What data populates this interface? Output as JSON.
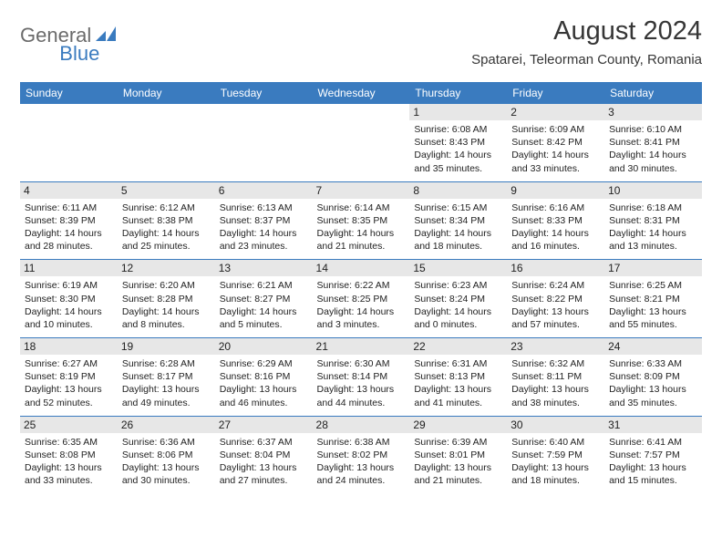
{
  "logo": {
    "general": "General",
    "blue": "Blue"
  },
  "title": "August 2024",
  "location": "Spatarei, Teleorman County, Romania",
  "header_bg": "#3a7bbf",
  "day_header_bg": "#e7e7e7",
  "weekdays": [
    "Sunday",
    "Monday",
    "Tuesday",
    "Wednesday",
    "Thursday",
    "Friday",
    "Saturday"
  ],
  "weeks": [
    [
      {
        "n": "",
        "sr": "",
        "ss": "",
        "dl": ""
      },
      {
        "n": "",
        "sr": "",
        "ss": "",
        "dl": ""
      },
      {
        "n": "",
        "sr": "",
        "ss": "",
        "dl": ""
      },
      {
        "n": "",
        "sr": "",
        "ss": "",
        "dl": ""
      },
      {
        "n": "1",
        "sr": "Sunrise: 6:08 AM",
        "ss": "Sunset: 8:43 PM",
        "dl": "Daylight: 14 hours and 35 minutes."
      },
      {
        "n": "2",
        "sr": "Sunrise: 6:09 AM",
        "ss": "Sunset: 8:42 PM",
        "dl": "Daylight: 14 hours and 33 minutes."
      },
      {
        "n": "3",
        "sr": "Sunrise: 6:10 AM",
        "ss": "Sunset: 8:41 PM",
        "dl": "Daylight: 14 hours and 30 minutes."
      }
    ],
    [
      {
        "n": "4",
        "sr": "Sunrise: 6:11 AM",
        "ss": "Sunset: 8:39 PM",
        "dl": "Daylight: 14 hours and 28 minutes."
      },
      {
        "n": "5",
        "sr": "Sunrise: 6:12 AM",
        "ss": "Sunset: 8:38 PM",
        "dl": "Daylight: 14 hours and 25 minutes."
      },
      {
        "n": "6",
        "sr": "Sunrise: 6:13 AM",
        "ss": "Sunset: 8:37 PM",
        "dl": "Daylight: 14 hours and 23 minutes."
      },
      {
        "n": "7",
        "sr": "Sunrise: 6:14 AM",
        "ss": "Sunset: 8:35 PM",
        "dl": "Daylight: 14 hours and 21 minutes."
      },
      {
        "n": "8",
        "sr": "Sunrise: 6:15 AM",
        "ss": "Sunset: 8:34 PM",
        "dl": "Daylight: 14 hours and 18 minutes."
      },
      {
        "n": "9",
        "sr": "Sunrise: 6:16 AM",
        "ss": "Sunset: 8:33 PM",
        "dl": "Daylight: 14 hours and 16 minutes."
      },
      {
        "n": "10",
        "sr": "Sunrise: 6:18 AM",
        "ss": "Sunset: 8:31 PM",
        "dl": "Daylight: 14 hours and 13 minutes."
      }
    ],
    [
      {
        "n": "11",
        "sr": "Sunrise: 6:19 AM",
        "ss": "Sunset: 8:30 PM",
        "dl": "Daylight: 14 hours and 10 minutes."
      },
      {
        "n": "12",
        "sr": "Sunrise: 6:20 AM",
        "ss": "Sunset: 8:28 PM",
        "dl": "Daylight: 14 hours and 8 minutes."
      },
      {
        "n": "13",
        "sr": "Sunrise: 6:21 AM",
        "ss": "Sunset: 8:27 PM",
        "dl": "Daylight: 14 hours and 5 minutes."
      },
      {
        "n": "14",
        "sr": "Sunrise: 6:22 AM",
        "ss": "Sunset: 8:25 PM",
        "dl": "Daylight: 14 hours and 3 minutes."
      },
      {
        "n": "15",
        "sr": "Sunrise: 6:23 AM",
        "ss": "Sunset: 8:24 PM",
        "dl": "Daylight: 14 hours and 0 minutes."
      },
      {
        "n": "16",
        "sr": "Sunrise: 6:24 AM",
        "ss": "Sunset: 8:22 PM",
        "dl": "Daylight: 13 hours and 57 minutes."
      },
      {
        "n": "17",
        "sr": "Sunrise: 6:25 AM",
        "ss": "Sunset: 8:21 PM",
        "dl": "Daylight: 13 hours and 55 minutes."
      }
    ],
    [
      {
        "n": "18",
        "sr": "Sunrise: 6:27 AM",
        "ss": "Sunset: 8:19 PM",
        "dl": "Daylight: 13 hours and 52 minutes."
      },
      {
        "n": "19",
        "sr": "Sunrise: 6:28 AM",
        "ss": "Sunset: 8:17 PM",
        "dl": "Daylight: 13 hours and 49 minutes."
      },
      {
        "n": "20",
        "sr": "Sunrise: 6:29 AM",
        "ss": "Sunset: 8:16 PM",
        "dl": "Daylight: 13 hours and 46 minutes."
      },
      {
        "n": "21",
        "sr": "Sunrise: 6:30 AM",
        "ss": "Sunset: 8:14 PM",
        "dl": "Daylight: 13 hours and 44 minutes."
      },
      {
        "n": "22",
        "sr": "Sunrise: 6:31 AM",
        "ss": "Sunset: 8:13 PM",
        "dl": "Daylight: 13 hours and 41 minutes."
      },
      {
        "n": "23",
        "sr": "Sunrise: 6:32 AM",
        "ss": "Sunset: 8:11 PM",
        "dl": "Daylight: 13 hours and 38 minutes."
      },
      {
        "n": "24",
        "sr": "Sunrise: 6:33 AM",
        "ss": "Sunset: 8:09 PM",
        "dl": "Daylight: 13 hours and 35 minutes."
      }
    ],
    [
      {
        "n": "25",
        "sr": "Sunrise: 6:35 AM",
        "ss": "Sunset: 8:08 PM",
        "dl": "Daylight: 13 hours and 33 minutes."
      },
      {
        "n": "26",
        "sr": "Sunrise: 6:36 AM",
        "ss": "Sunset: 8:06 PM",
        "dl": "Daylight: 13 hours and 30 minutes."
      },
      {
        "n": "27",
        "sr": "Sunrise: 6:37 AM",
        "ss": "Sunset: 8:04 PM",
        "dl": "Daylight: 13 hours and 27 minutes."
      },
      {
        "n": "28",
        "sr": "Sunrise: 6:38 AM",
        "ss": "Sunset: 8:02 PM",
        "dl": "Daylight: 13 hours and 24 minutes."
      },
      {
        "n": "29",
        "sr": "Sunrise: 6:39 AM",
        "ss": "Sunset: 8:01 PM",
        "dl": "Daylight: 13 hours and 21 minutes."
      },
      {
        "n": "30",
        "sr": "Sunrise: 6:40 AM",
        "ss": "Sunset: 7:59 PM",
        "dl": "Daylight: 13 hours and 18 minutes."
      },
      {
        "n": "31",
        "sr": "Sunrise: 6:41 AM",
        "ss": "Sunset: 7:57 PM",
        "dl": "Daylight: 13 hours and 15 minutes."
      }
    ]
  ]
}
